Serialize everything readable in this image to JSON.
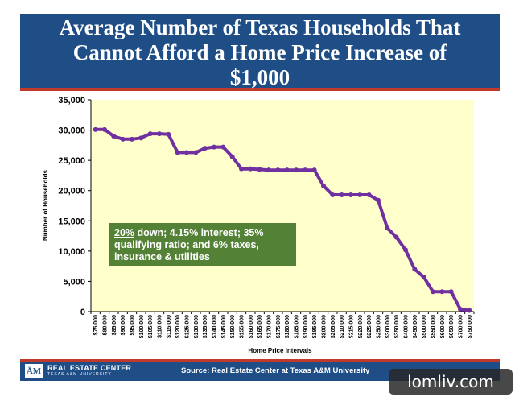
{
  "title": {
    "line1": "Average Number of Texas Households That",
    "line2": "Cannot Afford a Home Price Increase of",
    "line3": "$1,000"
  },
  "chart_data": {
    "type": "line",
    "title": "Average Number of Texas Households That Cannot Afford a Home Price Increase of $1,000",
    "xlabel": "Home Price Intervals",
    "ylabel": "Number of Households",
    "ylim": [
      0,
      35000
    ],
    "yticks": [
      0,
      5000,
      10000,
      15000,
      20000,
      25000,
      30000,
      35000
    ],
    "ytick_labels": [
      "0",
      "5,000",
      "10,000",
      "15,000",
      "20,000",
      "25,000",
      "30,000",
      "35,000"
    ],
    "categories": [
      "$75,000",
      "$80,000",
      "$85,000",
      "$90,000",
      "$95,000",
      "$100,000",
      "$105,000",
      "$110,000",
      "$115,000",
      "$120,000",
      "$125,000",
      "$130,000",
      "$135,000",
      "$140,000",
      "$145,000",
      "$150,000",
      "$155,000",
      "$160,000",
      "$165,000",
      "$170,000",
      "$175,000",
      "$180,000",
      "$185,000",
      "$190,000",
      "$195,000",
      "$200,000",
      "$205,000",
      "$210,000",
      "$215,000",
      "$220,000",
      "$225,000",
      "$250,000",
      "$300,000",
      "$350,000",
      "$400,000",
      "$450,000",
      "$500,000",
      "$550,000",
      "$600,000",
      "$650,000",
      "$700,000",
      "$750,000"
    ],
    "values": [
      30100,
      30100,
      29000,
      28500,
      28500,
      28700,
      29400,
      29400,
      29300,
      26300,
      26300,
      26300,
      27000,
      27200,
      27200,
      25600,
      23600,
      23600,
      23500,
      23400,
      23400,
      23400,
      23400,
      23400,
      23400,
      20800,
      19300,
      19300,
      19300,
      19300,
      19300,
      18400,
      13800,
      12300,
      10200,
      7000,
      5700,
      3300,
      3300,
      3300,
      400,
      200
    ],
    "grid": false,
    "series_color": "#7030a0",
    "plot_background": "#ffffcc",
    "annotation": {
      "underlined": "20%",
      "line1_rest": " down; 4.15% interest; 35%",
      "line2": "qualifying ratio; and 6% taxes,",
      "line3": "insurance & utilities",
      "background": "#538135"
    }
  },
  "footer": {
    "logo": "ĀM",
    "org": "REAL ESTATE CENTER",
    "org_sub": "TEXAS A&M UNIVERSITY",
    "source": "Source: Real Estate Center at Texas A&M University"
  },
  "watermark": "lomliv.com"
}
